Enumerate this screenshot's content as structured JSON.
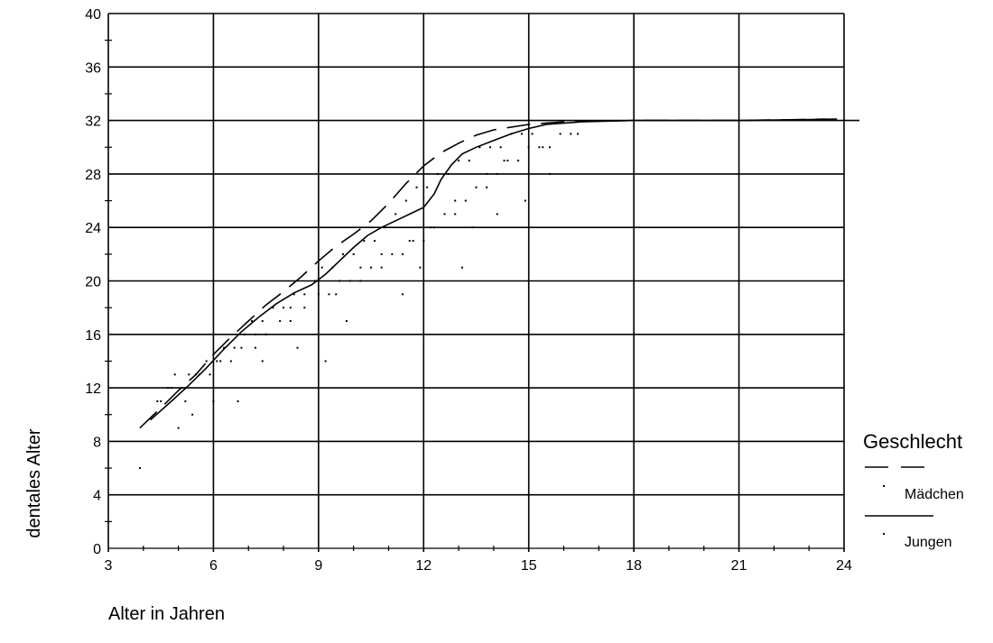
{
  "chart_data": {
    "type": "scatter",
    "xlabel": "Alter in Jahren",
    "ylabel": "dentales Alter",
    "xlim": [
      3,
      24
    ],
    "ylim": [
      0,
      40
    ],
    "x_ticks": [
      3,
      6,
      9,
      12,
      15,
      18,
      21,
      24
    ],
    "y_ticks": [
      0,
      4,
      8,
      12,
      16,
      20,
      24,
      28,
      32,
      36,
      40
    ],
    "grid": true,
    "reference_line_y": 32,
    "legend": {
      "title": "Geschlecht",
      "placement": "right",
      "entries": [
        "Mädchen",
        "Jungen"
      ]
    },
    "series": [
      {
        "name": "Mädchen",
        "line_style": "dashed",
        "fit_line": [
          [
            3.9,
            9
          ],
          [
            4.5,
            10.5
          ],
          [
            5,
            11.8
          ],
          [
            5.5,
            13
          ],
          [
            6,
            14.5
          ],
          [
            6.5,
            15.8
          ],
          [
            7,
            17
          ],
          [
            7.5,
            18.2
          ],
          [
            8,
            19.2
          ],
          [
            8.5,
            20.3
          ],
          [
            9,
            21.5
          ],
          [
            9.5,
            22.6
          ],
          [
            10,
            23.5
          ],
          [
            10.5,
            24.5
          ],
          [
            11,
            25.8
          ],
          [
            11.5,
            27.3
          ],
          [
            12,
            28.6
          ],
          [
            12.5,
            29.6
          ],
          [
            13,
            30.3
          ],
          [
            13.5,
            30.9
          ],
          [
            14,
            31.3
          ],
          [
            15,
            31.7
          ],
          [
            16,
            31.9
          ],
          [
            18,
            32
          ],
          [
            21,
            32
          ],
          [
            23.5,
            32.1
          ]
        ],
        "points": [
          [
            4.7,
            12
          ],
          [
            4.9,
            13
          ],
          [
            5.1,
            12
          ],
          [
            5.3,
            13
          ],
          [
            5.6,
            13
          ],
          [
            5.8,
            14
          ],
          [
            6.1,
            14
          ],
          [
            6.3,
            15
          ],
          [
            6.6,
            15
          ],
          [
            6.9,
            16
          ],
          [
            7.1,
            17
          ],
          [
            7.4,
            17
          ],
          [
            7.7,
            18
          ],
          [
            8.0,
            18
          ],
          [
            8.3,
            19
          ],
          [
            8.6,
            19
          ],
          [
            8.9,
            20
          ],
          [
            9.1,
            21
          ],
          [
            9.4,
            21
          ],
          [
            9.7,
            22
          ],
          [
            10.0,
            22
          ],
          [
            10.3,
            23
          ],
          [
            10.6,
            23
          ],
          [
            10.9,
            24
          ],
          [
            11.2,
            25
          ],
          [
            11.5,
            26
          ],
          [
            11.8,
            27
          ],
          [
            12.1,
            27
          ],
          [
            12.4,
            28
          ],
          [
            12.7,
            28
          ],
          [
            13.0,
            29
          ],
          [
            13.3,
            29
          ],
          [
            13.6,
            30
          ],
          [
            13.9,
            30
          ],
          [
            14.2,
            30
          ],
          [
            14.5,
            31
          ],
          [
            14.8,
            31
          ],
          [
            15.1,
            31
          ],
          [
            7.2,
            15
          ],
          [
            7.5,
            16
          ],
          [
            8.2,
            17
          ],
          [
            9.5,
            19
          ],
          [
            10.2,
            20
          ],
          [
            10.8,
            21
          ],
          [
            11.6,
            23
          ],
          [
            12.2,
            24
          ],
          [
            12.9,
            26
          ],
          [
            13.8,
            28
          ],
          [
            14.3,
            29
          ],
          [
            15.4,
            30
          ],
          [
            16.2,
            31
          ],
          [
            4.4,
            11
          ],
          [
            5.2,
            11
          ],
          [
            6.0,
            11
          ],
          [
            3.9,
            6
          ],
          [
            5.0,
            9
          ]
        ]
      },
      {
        "name": "Jungen",
        "line_style": "solid",
        "fit_line": [
          [
            4.2,
            9.6
          ],
          [
            4.8,
            11
          ],
          [
            5.3,
            12.2
          ],
          [
            5.8,
            13.5
          ],
          [
            6.3,
            14.9
          ],
          [
            6.8,
            16.2
          ],
          [
            7.3,
            17.3
          ],
          [
            7.8,
            18.3
          ],
          [
            8.3,
            19.1
          ],
          [
            8.8,
            19.7
          ],
          [
            9.2,
            20.5
          ],
          [
            9.6,
            21.5
          ],
          [
            10,
            22.5
          ],
          [
            10.4,
            23.4
          ],
          [
            10.8,
            24
          ],
          [
            11.2,
            24.5
          ],
          [
            11.6,
            25
          ],
          [
            12,
            25.5
          ],
          [
            12.3,
            26.5
          ],
          [
            12.5,
            27.6
          ],
          [
            12.8,
            28.7
          ],
          [
            13.1,
            29.5
          ],
          [
            13.5,
            30
          ],
          [
            14,
            30.5
          ],
          [
            14.5,
            31
          ],
          [
            15,
            31.4
          ],
          [
            15.5,
            31.7
          ],
          [
            16.5,
            31.9
          ],
          [
            18,
            32
          ],
          [
            21,
            32
          ],
          [
            23.8,
            32.1
          ]
        ],
        "points": [
          [
            4.5,
            11
          ],
          [
            4.8,
            12
          ],
          [
            5.2,
            12
          ],
          [
            5.5,
            13
          ],
          [
            5.9,
            13
          ],
          [
            6.2,
            14
          ],
          [
            6.5,
            14
          ],
          [
            6.8,
            15
          ],
          [
            7.2,
            16
          ],
          [
            7.5,
            16
          ],
          [
            7.9,
            17
          ],
          [
            8.2,
            18
          ],
          [
            8.6,
            18
          ],
          [
            9.0,
            19
          ],
          [
            9.3,
            19
          ],
          [
            9.6,
            20
          ],
          [
            9.9,
            20
          ],
          [
            10.2,
            21
          ],
          [
            10.5,
            21
          ],
          [
            10.8,
            22
          ],
          [
            11.1,
            22
          ],
          [
            11.4,
            22
          ],
          [
            11.7,
            23
          ],
          [
            12.0,
            23
          ],
          [
            12.3,
            24
          ],
          [
            12.6,
            25
          ],
          [
            12.9,
            25
          ],
          [
            13.2,
            26
          ],
          [
            13.5,
            27
          ],
          [
            13.8,
            27
          ],
          [
            14.1,
            28
          ],
          [
            14.4,
            29
          ],
          [
            14.7,
            29
          ],
          [
            15.0,
            30
          ],
          [
            15.3,
            30
          ],
          [
            15.6,
            30
          ],
          [
            15.9,
            31
          ],
          [
            16.4,
            31
          ],
          [
            6.7,
            11
          ],
          [
            5.4,
            10
          ],
          [
            7.4,
            14
          ],
          [
            8.4,
            15
          ],
          [
            9.2,
            14
          ],
          [
            9.8,
            17
          ],
          [
            11.4,
            19
          ],
          [
            11.9,
            21
          ],
          [
            13.1,
            21
          ],
          [
            14.9,
            26
          ],
          [
            15.6,
            28
          ],
          [
            14.1,
            25
          ],
          [
            13.4,
            24
          ]
        ]
      }
    ]
  }
}
